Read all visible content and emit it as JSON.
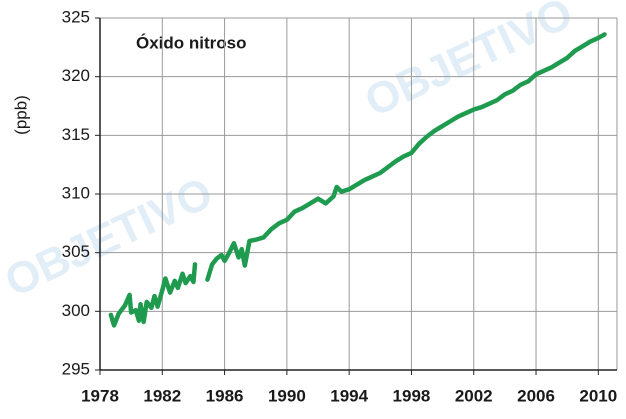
{
  "chart_data": {
    "type": "line",
    "title": "Óxido nitroso",
    "y_label": "(ppb)",
    "watermark": "OBJETIVO",
    "x": [
      1978.7,
      1978.9,
      1979.2,
      1979.6,
      1979.9,
      1980.0,
      1980.3,
      1980.5,
      1980.6,
      1980.8,
      1981.0,
      1981.3,
      1981.5,
      1981.7,
      1982.0,
      1982.2,
      1982.5,
      1982.8,
      1983.0,
      1983.3,
      1983.5,
      1983.8,
      1984.0,
      1984.1,
      1984.5,
      1984.9,
      1985.2,
      1985.5,
      1985.8,
      1986.0,
      1986.3,
      1986.6,
      1986.9,
      1987.1,
      1987.3,
      1987.6,
      1988.0,
      1988.5,
      1989.0,
      1989.5,
      1990.0,
      1990.5,
      1991.0,
      1991.5,
      1992.0,
      1992.5,
      1993.0,
      1993.2,
      1993.5,
      1994.0,
      1994.5,
      1995.0,
      1995.5,
      1996.0,
      1996.5,
      1997.0,
      1997.5,
      1998.0,
      1998.5,
      1999.0,
      1999.5,
      2000.0,
      2000.5,
      2001.0,
      2001.5,
      2002.0,
      2002.5,
      2003.0,
      2003.5,
      2004.0,
      2004.5,
      2005.0,
      2005.5,
      2006.0,
      2006.5,
      2007.0,
      2007.5,
      2008.0,
      2008.5,
      2009.0,
      2009.5,
      2010.0,
      2010.4
    ],
    "series": [
      {
        "name": "Óxido nitroso",
        "color": "#1f9b4f",
        "values": [
          299.7,
          298.8,
          299.8,
          300.5,
          301.4,
          299.9,
          300.1,
          299.2,
          300.6,
          299.1,
          300.8,
          300.3,
          301.3,
          300.4,
          301.8,
          302.8,
          301.6,
          302.6,
          302.0,
          303.2,
          302.4,
          303.0,
          302.5,
          304.0,
          null,
          302.7,
          304.0,
          304.5,
          304.8,
          304.3,
          305.0,
          305.8,
          304.6,
          305.3,
          303.9,
          306.0,
          306.1,
          306.3,
          307.0,
          307.5,
          307.8,
          308.5,
          308.8,
          309.2,
          309.6,
          309.2,
          309.8,
          310.6,
          310.2,
          310.4,
          310.8,
          311.2,
          311.5,
          311.8,
          312.3,
          312.8,
          313.2,
          313.5,
          314.3,
          314.9,
          315.4,
          315.8,
          316.2,
          316.6,
          316.9,
          317.2,
          317.4,
          317.7,
          318.0,
          318.5,
          318.8,
          319.3,
          319.6,
          320.2,
          320.5,
          320.8,
          321.2,
          321.6,
          322.2,
          322.6,
          323.0,
          323.3,
          323.6
        ]
      }
    ],
    "xlim": [
      1978,
      2011.2
    ],
    "xticks": [
      1978,
      1982,
      1986,
      1990,
      1994,
      1998,
      2002,
      2006,
      2010
    ],
    "ylim": [
      295,
      325
    ],
    "yticks": [
      295,
      300,
      305,
      310,
      315,
      320,
      325
    ],
    "grid": true
  }
}
